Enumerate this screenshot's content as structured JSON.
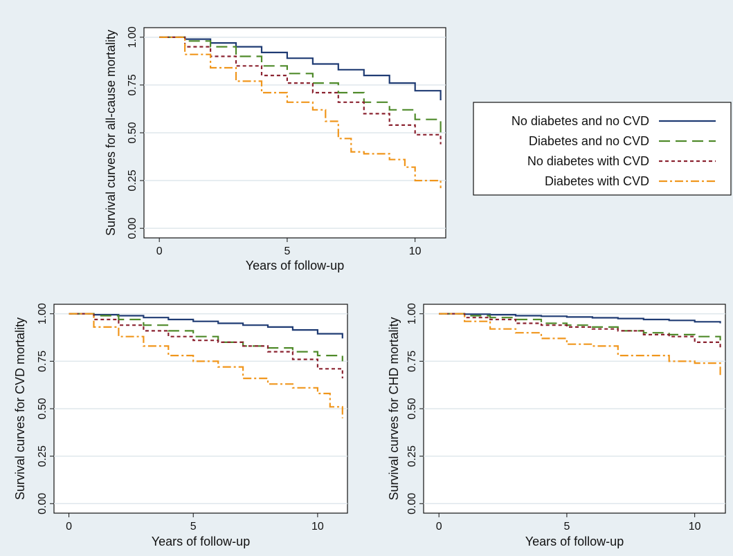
{
  "colors": {
    "background": "#e8eff3",
    "plot_area": "#ffffff",
    "grid": "#dfe7ec",
    "no_diabetes_no_cvd": "#1f3b73",
    "diabetes_no_cvd": "#4f8a2a",
    "no_diabetes_with_cvd": "#8b2330",
    "diabetes_with_cvd": "#f0961c"
  },
  "legend": {
    "items": [
      {
        "label": "No diabetes and no CVD",
        "style": "solid",
        "color": "#1f3b73"
      },
      {
        "label": "Diabetes and no CVD",
        "style": "longdash",
        "color": "#4f8a2a"
      },
      {
        "label": "No diabetes with CVD",
        "style": "shortdash",
        "color": "#8b2330"
      },
      {
        "label": "Diabetes with CVD",
        "style": "dashdot",
        "color": "#f0961c"
      }
    ]
  },
  "chart_data": [
    {
      "type": "line",
      "title": "",
      "xlabel": "Years of follow-up",
      "ylabel": "Survival curves for all-cause mortality",
      "xlim": [
        -0.6,
        11.2
      ],
      "ylim": [
        -0.05,
        1.05
      ],
      "xticks": [
        0,
        5,
        10
      ],
      "yticks": [
        0.0,
        0.25,
        0.5,
        0.75,
        1.0
      ],
      "ytick_labels": [
        "0.00",
        "0.25",
        "0.50",
        "0.75",
        "1.00"
      ],
      "grid": true,
      "series": [
        {
          "name": "No diabetes and no CVD",
          "x": [
            0,
            1,
            2,
            3,
            4,
            5,
            6,
            7,
            8,
            9,
            10,
            11
          ],
          "y": [
            1.0,
            0.99,
            0.97,
            0.95,
            0.92,
            0.89,
            0.86,
            0.83,
            0.8,
            0.76,
            0.72,
            0.67
          ]
        },
        {
          "name": "Diabetes and no CVD",
          "x": [
            0,
            1,
            2,
            3,
            4,
            5,
            6,
            7,
            8,
            9,
            10,
            11
          ],
          "y": [
            1.0,
            0.98,
            0.95,
            0.9,
            0.85,
            0.81,
            0.76,
            0.71,
            0.66,
            0.62,
            0.57,
            0.5
          ]
        },
        {
          "name": "No diabetes with CVD",
          "x": [
            0,
            1,
            2,
            3,
            4,
            5,
            6,
            7,
            8,
            9,
            10,
            11
          ],
          "y": [
            1.0,
            0.95,
            0.9,
            0.85,
            0.8,
            0.76,
            0.71,
            0.66,
            0.6,
            0.54,
            0.49,
            0.44
          ]
        },
        {
          "name": "Diabetes with CVD",
          "x": [
            0,
            1,
            2,
            3,
            4,
            5,
            6,
            6.5,
            7,
            7.5,
            8,
            9,
            9.6,
            10,
            11
          ],
          "y": [
            1.0,
            0.91,
            0.84,
            0.77,
            0.71,
            0.66,
            0.62,
            0.56,
            0.47,
            0.4,
            0.39,
            0.36,
            0.32,
            0.25,
            0.21
          ]
        }
      ]
    },
    {
      "type": "line",
      "title": "",
      "xlabel": "Years of follow-up",
      "ylabel": "Survival curves for CVD mortality",
      "xlim": [
        -0.6,
        11.2
      ],
      "ylim": [
        -0.05,
        1.05
      ],
      "xticks": [
        0,
        5,
        10
      ],
      "yticks": [
        0.0,
        0.25,
        0.5,
        0.75,
        1.0
      ],
      "ytick_labels": [
        "0.00",
        "0.25",
        "0.50",
        "0.75",
        "1.00"
      ],
      "grid": true,
      "series": [
        {
          "name": "No diabetes and no CVD",
          "x": [
            0,
            1,
            2,
            3,
            4,
            5,
            6,
            7,
            8,
            9,
            10,
            11
          ],
          "y": [
            1.0,
            0.995,
            0.99,
            0.98,
            0.97,
            0.96,
            0.95,
            0.94,
            0.93,
            0.915,
            0.895,
            0.87
          ]
        },
        {
          "name": "Diabetes and no CVD",
          "x": [
            0,
            1,
            2,
            3,
            4,
            5,
            6,
            7,
            8,
            9,
            10,
            11
          ],
          "y": [
            1.0,
            0.99,
            0.97,
            0.94,
            0.91,
            0.88,
            0.85,
            0.83,
            0.82,
            0.8,
            0.78,
            0.75
          ]
        },
        {
          "name": "No diabetes with CVD",
          "x": [
            0,
            1,
            2,
            3,
            4,
            5,
            6,
            7,
            8,
            9,
            10,
            11
          ],
          "y": [
            1.0,
            0.97,
            0.94,
            0.91,
            0.88,
            0.86,
            0.85,
            0.83,
            0.8,
            0.76,
            0.71,
            0.66
          ]
        },
        {
          "name": "Diabetes with CVD",
          "x": [
            0,
            1,
            2,
            3,
            4,
            5,
            6,
            7,
            8,
            9,
            10,
            10.5,
            11
          ],
          "y": [
            1.0,
            0.93,
            0.88,
            0.83,
            0.78,
            0.75,
            0.72,
            0.66,
            0.63,
            0.61,
            0.58,
            0.51,
            0.45
          ]
        }
      ]
    },
    {
      "type": "line",
      "title": "",
      "xlabel": "Years of follow-up",
      "ylabel": "Survival curves for CHD mortality",
      "xlim": [
        -0.6,
        11.2
      ],
      "ylim": [
        -0.05,
        1.05
      ],
      "xticks": [
        0,
        5,
        10
      ],
      "yticks": [
        0.0,
        0.25,
        0.5,
        0.75,
        1.0
      ],
      "ytick_labels": [
        "0.00",
        "0.25",
        "0.50",
        "0.75",
        "1.00"
      ],
      "grid": true,
      "series": [
        {
          "name": "No diabetes and no CVD",
          "x": [
            0,
            1,
            2,
            3,
            4,
            5,
            6,
            7,
            8,
            9,
            10,
            11
          ],
          "y": [
            1.0,
            0.998,
            0.995,
            0.99,
            0.987,
            0.983,
            0.979,
            0.975,
            0.97,
            0.965,
            0.958,
            0.95
          ]
        },
        {
          "name": "Diabetes and no CVD",
          "x": [
            0,
            1,
            2,
            3,
            4,
            5,
            6,
            7,
            8,
            9,
            10,
            11
          ],
          "y": [
            1.0,
            0.99,
            0.98,
            0.97,
            0.95,
            0.94,
            0.93,
            0.91,
            0.9,
            0.89,
            0.88,
            0.86
          ]
        },
        {
          "name": "No diabetes with CVD",
          "x": [
            0,
            1,
            2,
            3,
            4,
            5,
            6,
            7,
            8,
            9,
            10,
            11
          ],
          "y": [
            1.0,
            0.98,
            0.97,
            0.95,
            0.94,
            0.93,
            0.92,
            0.91,
            0.89,
            0.88,
            0.85,
            0.81
          ]
        },
        {
          "name": "Diabetes with CVD",
          "x": [
            0,
            1,
            2,
            3,
            4,
            5,
            6,
            7,
            8,
            9,
            10,
            11
          ],
          "y": [
            1.0,
            0.96,
            0.92,
            0.9,
            0.87,
            0.84,
            0.83,
            0.78,
            0.78,
            0.75,
            0.74,
            0.67
          ]
        }
      ]
    }
  ]
}
